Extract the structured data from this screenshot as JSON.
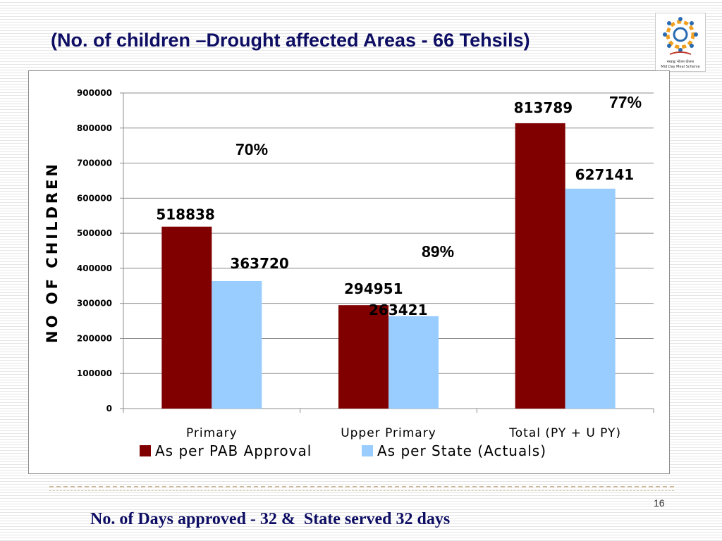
{
  "slide": {
    "title": "(No. of children –Drought affected Areas - 66 Tehsils)",
    "footer": "No. of Days approved - 32 &  State served 32 days",
    "page_number": "16",
    "logo": {
      "line1": "मध्याह्न भोजन योजना",
      "line2": "Mid Day Meal Scheme"
    }
  },
  "colors": {
    "pab": "#800000",
    "state": "#99ccff",
    "title": "#0d0d63"
  },
  "chart_data": {
    "type": "bar",
    "categories": [
      "Primary",
      "Upper Primary",
      "Total (PY + U PY)"
    ],
    "series": [
      {
        "name": "As per PAB Approval",
        "values": [
          518838,
          294951,
          813789
        ]
      },
      {
        "name": "As per State (Actuals)",
        "values": [
          363720,
          263421,
          627141
        ]
      }
    ],
    "data_labels": [
      [
        "518838",
        "294951",
        "813789"
      ],
      [
        "363720",
        "263421",
        "627141"
      ]
    ],
    "percent_labels": [
      "70%",
      "89%",
      "77%"
    ],
    "ylabel": "NO OF CHILDREN",
    "xlabel": "",
    "ylim": [
      0,
      900000
    ],
    "yticks": [
      "0",
      "100000",
      "200000",
      "300000",
      "400000",
      "500000",
      "600000",
      "700000",
      "800000",
      "900000"
    ],
    "grid": true,
    "legend": "bottom"
  }
}
